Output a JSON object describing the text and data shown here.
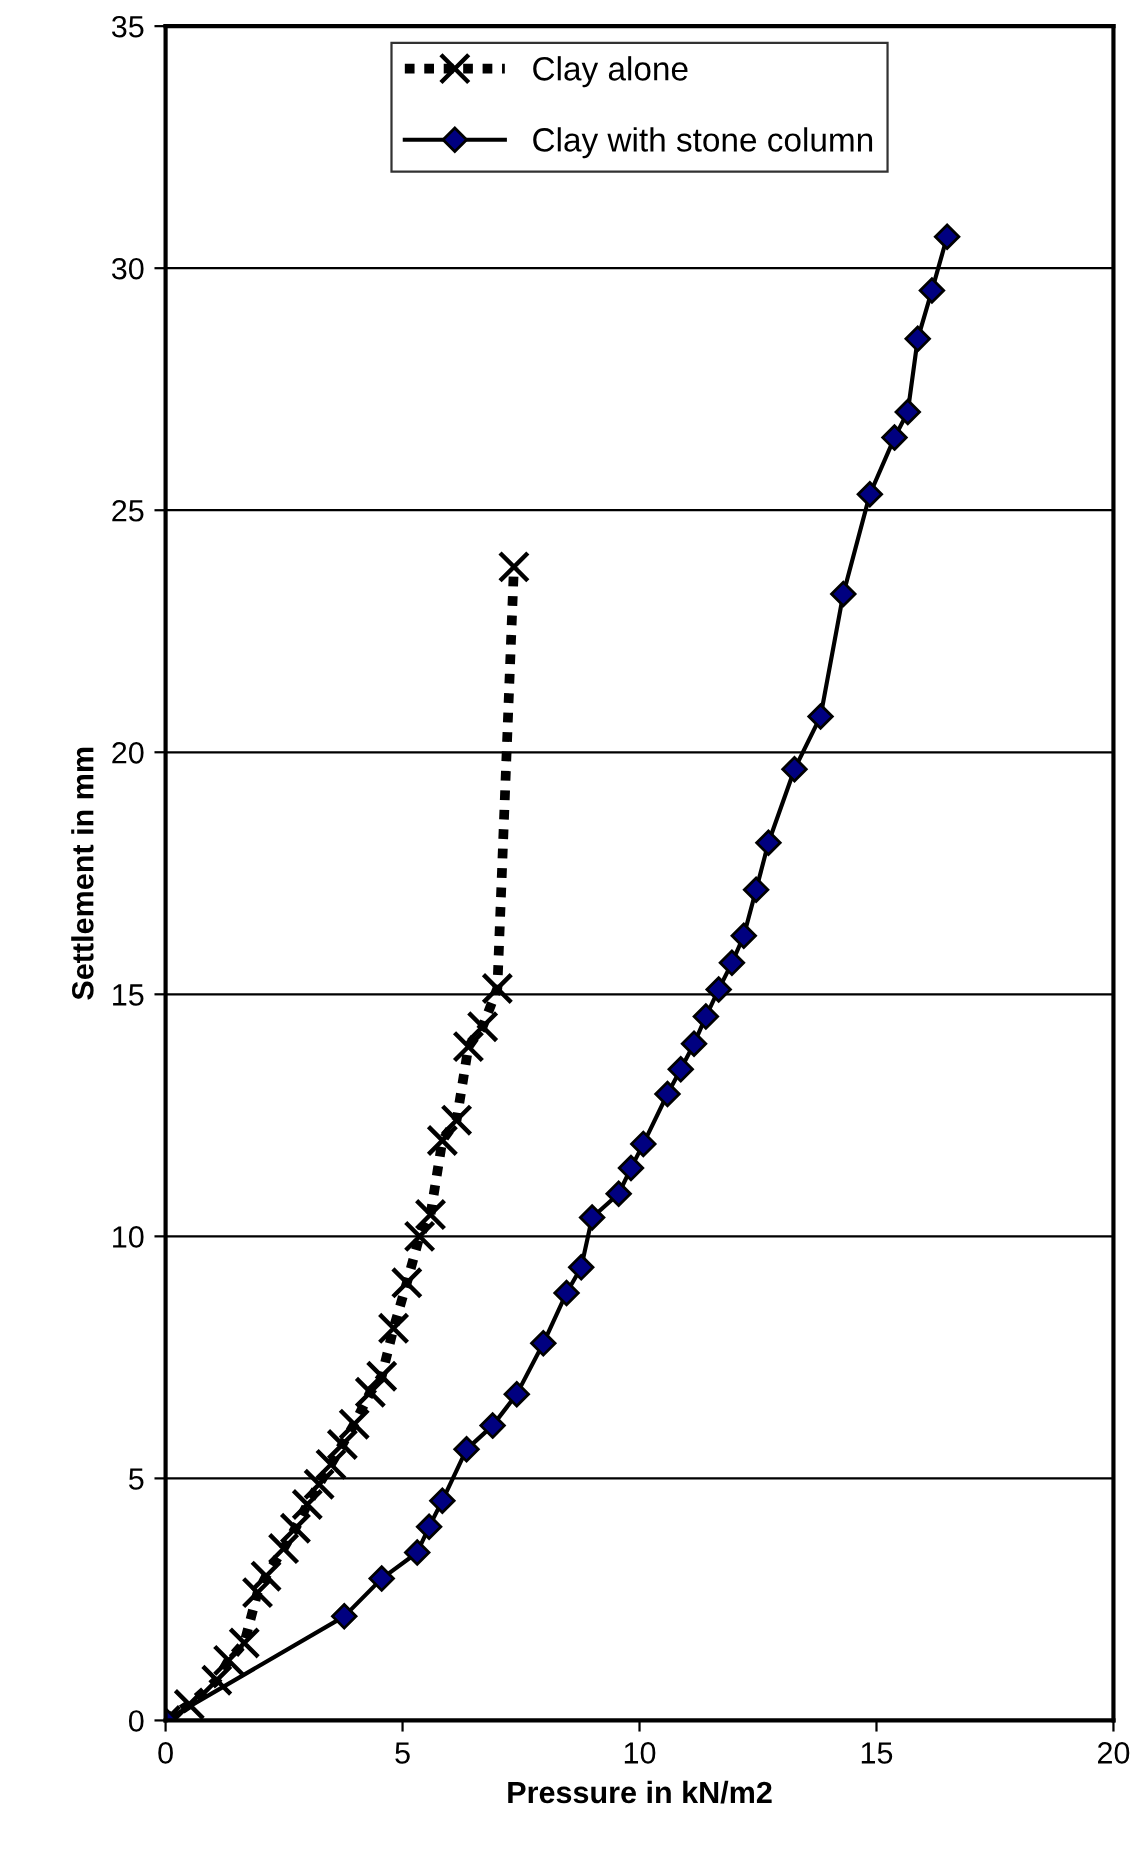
{
  "chart_data": {
    "type": "line",
    "xlabel": "Pressure in kN/m2",
    "ylabel": "Settlement in mm",
    "xlim": [
      0,
      20
    ],
    "xticks": [
      0,
      5,
      10,
      15,
      20
    ],
    "ylim": [
      0,
      35
    ],
    "yticks": [
      0,
      5,
      10,
      15,
      20,
      25,
      30,
      35
    ],
    "grid": "y",
    "legend": "top",
    "series": [
      {
        "name": "Clay alone",
        "color": "#000000",
        "marker": "cross",
        "line_style": "dotted",
        "x": [
          0,
          0.5,
          1.08,
          1.33,
          1.66,
          1.94,
          2.12,
          2.49,
          2.74,
          2.99,
          3.24,
          3.49,
          3.73,
          3.98,
          4.32,
          4.56,
          4.81,
          5.09,
          5.36,
          5.59,
          5.84,
          6.14,
          6.39,
          6.69,
          7.0,
          7.35
        ],
        "values": [
          0,
          0.33,
          0.83,
          1.24,
          1.6,
          2.64,
          2.98,
          3.55,
          3.97,
          4.46,
          4.88,
          5.29,
          5.7,
          6.12,
          6.78,
          7.11,
          8.1,
          9.04,
          10.0,
          10.45,
          11.98,
          12.4,
          13.92,
          14.33,
          15.12,
          23.83
        ]
      },
      {
        "name": "Clay with stone column",
        "color": "#000080",
        "marker": "diamond",
        "line_style": "solid",
        "x": [
          0,
          3.77,
          4.56,
          5.31,
          5.56,
          5.84,
          6.35,
          6.9,
          7.41,
          7.97,
          8.46,
          8.77,
          9.0,
          9.56,
          9.82,
          10.08,
          10.59,
          10.87,
          11.15,
          11.4,
          11.67,
          11.95,
          12.2,
          12.46,
          12.72,
          13.27,
          13.82,
          14.3,
          14.86,
          15.38,
          15.66,
          15.87,
          16.17,
          16.49
        ],
        "values": [
          0,
          2.15,
          2.93,
          3.47,
          4.0,
          4.54,
          5.6,
          6.09,
          6.74,
          7.79,
          8.83,
          9.36,
          10.39,
          10.88,
          11.41,
          11.91,
          12.94,
          13.45,
          13.98,
          14.54,
          15.1,
          15.65,
          16.21,
          17.16,
          18.13,
          19.65,
          20.74,
          23.27,
          25.33,
          26.5,
          27.03,
          28.54,
          29.54,
          30.65
        ]
      }
    ]
  }
}
